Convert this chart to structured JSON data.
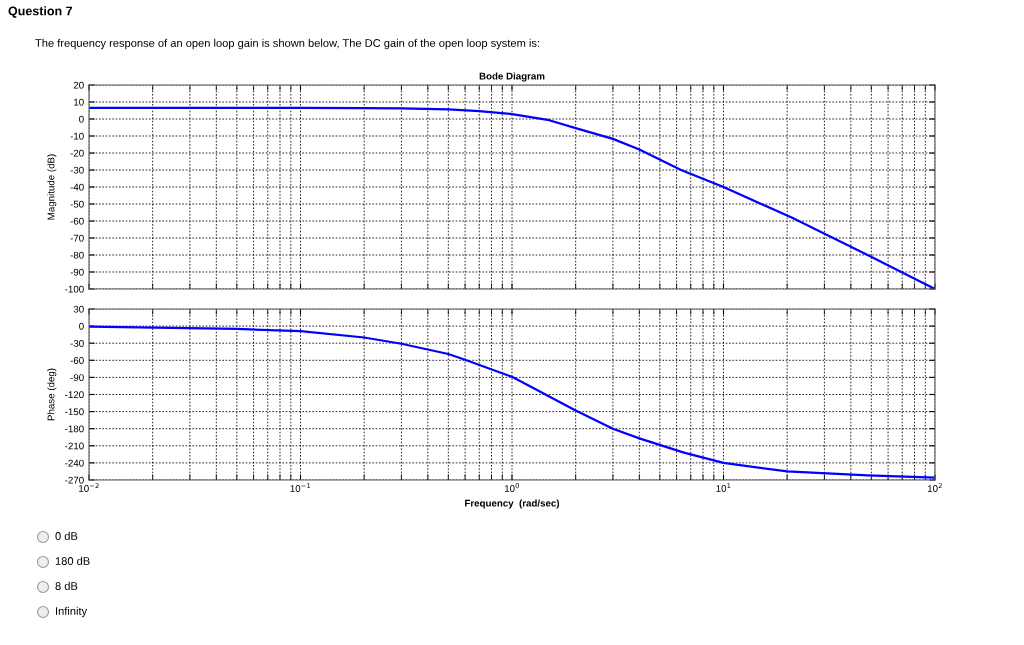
{
  "chart_data": [
    {
      "type": "line",
      "title": "Bode Diagram",
      "ylabel": "Magnitude (dB)",
      "log": "x",
      "grid": true,
      "tick_labels": "y",
      "annotations": [
        "Question 7",
        "The frequency response of an open loop gain is shown below, The DC gain of the open loop system is:",
        "0 dB",
        "180 dB",
        "8 dB",
        "Infinity"
      ],
      "xlim": [
        0.01,
        100
      ],
      "ylim": [
        -100,
        20
      ],
      "yticks": [
        -100,
        -90,
        -80,
        -70,
        -60,
        -50,
        -40,
        -30,
        -20,
        -10,
        0,
        10,
        20
      ],
      "series": [
        {
          "color": "#0000ff",
          "x": [
            0.01,
            0.1,
            0.2,
            0.3,
            0.5,
            0.7,
            1,
            1.5,
            2,
            3,
            4,
            6.3,
            10,
            21,
            48,
            100
          ],
          "values": [
            6.6,
            6.6,
            6.4,
            6.2,
            5.6,
            4.6,
            2.9,
            -0.7,
            -5.4,
            -11.7,
            -17.9,
            -30,
            -40,
            -58,
            -80,
            -100
          ]
        }
      ]
    },
    {
      "type": "line",
      "xlabel": "Frequency  (rad/sec)",
      "ylabel": "Phase (deg)",
      "log": "x",
      "grid": true,
      "xlim": [
        0.01,
        100
      ],
      "xticks": [
        {
          "value": 0.01,
          "label": "10$^{−2}$"
        },
        {
          "value": 0.1,
          "label": "10$^{−1}$"
        },
        {
          "value": 1,
          "label": "10$^{0}$"
        },
        {
          "value": 10,
          "label": "10$^{1}$"
        },
        {
          "value": 100,
          "label": "10$^{2}$"
        }
      ],
      "ylim": [
        -270,
        30
      ],
      "yticks": [
        -270,
        -240,
        -210,
        -180,
        -150,
        -120,
        -90,
        -60,
        -30,
        0,
        30
      ],
      "series": [
        {
          "color": "#0000ff",
          "x": [
            0.01,
            0.05,
            0.1,
            0.2,
            0.3,
            0.5,
            0.6,
            1,
            2,
            3,
            4,
            6.5,
            10,
            20,
            48,
            100
          ],
          "values": [
            -1,
            -5,
            -9,
            -20,
            -31,
            -49,
            -59,
            -89,
            -148,
            -180,
            -197,
            -222,
            -240,
            -255,
            -262,
            -266
          ]
        }
      ]
    }
  ]
}
